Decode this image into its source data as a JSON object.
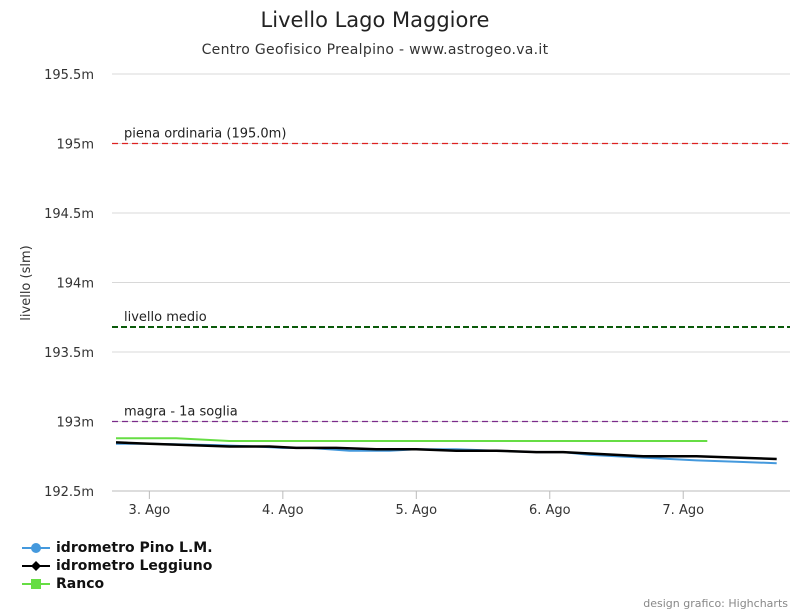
{
  "chart_data": {
    "type": "line",
    "title": "Livello Lago Maggiore",
    "subtitle": "Centro Geofisico Prealpino - www.astrogeo.va.it",
    "ylabel": "livello (slm)",
    "xlabel": "",
    "ylim": [
      192.5,
      195.5
    ],
    "xlim": [
      2.72,
      7.8
    ],
    "y_ticks": [
      {
        "value": 192.5,
        "label": "192.5m"
      },
      {
        "value": 193,
        "label": "193m"
      },
      {
        "value": 193.5,
        "label": "193.5m"
      },
      {
        "value": 194,
        "label": "194m"
      },
      {
        "value": 194.5,
        "label": "194.5m"
      },
      {
        "value": 195,
        "label": "195m"
      },
      {
        "value": 195.5,
        "label": "195.5m"
      }
    ],
    "x_ticks": [
      {
        "value": 3,
        "label": "3. Ago"
      },
      {
        "value": 4,
        "label": "4. Ago"
      },
      {
        "value": 5,
        "label": "5. Ago"
      },
      {
        "value": 6,
        "label": "6. Ago"
      },
      {
        "value": 7,
        "label": "7. Ago"
      }
    ],
    "plot_lines": [
      {
        "value": 195.0,
        "label": "piena ordinaria (195.0m)",
        "color": "#dd2222",
        "style": "dashed"
      },
      {
        "value": 193.68,
        "label": "livello medio",
        "color": "#0a5a0a",
        "style": "dashed-bold"
      },
      {
        "value": 193.0,
        "label": "magra - 1a soglia",
        "color": "#7a2a8a",
        "style": "dashed"
      }
    ],
    "grid": true,
    "legend_position": "bottom-left",
    "series": [
      {
        "name": "idrometro Pino L.M.",
        "color": "#4499dd",
        "marker": "circle",
        "x": [
          2.75,
          3.0,
          3.5,
          3.8,
          4.0,
          4.2,
          4.5,
          4.8,
          5.0,
          5.3,
          5.6,
          5.9,
          6.1,
          6.3,
          6.5,
          6.7,
          6.9,
          7.1,
          7.4,
          7.7
        ],
        "y": [
          192.84,
          192.84,
          192.83,
          192.82,
          192.81,
          192.81,
          192.79,
          192.79,
          192.8,
          192.8,
          192.79,
          192.78,
          192.78,
          192.76,
          192.75,
          192.74,
          192.73,
          192.72,
          192.71,
          192.7
        ]
      },
      {
        "name": "idrometro Leggiuno",
        "color": "#000000",
        "marker": "diamond",
        "x": [
          2.75,
          3.0,
          3.3,
          3.6,
          3.9,
          4.1,
          4.4,
          4.7,
          5.0,
          5.3,
          5.6,
          5.9,
          6.1,
          6.3,
          6.5,
          6.7,
          6.9,
          7.1,
          7.4,
          7.7
        ],
        "y": [
          192.85,
          192.84,
          192.83,
          192.82,
          192.82,
          192.81,
          192.81,
          192.8,
          192.8,
          192.79,
          192.79,
          192.78,
          192.78,
          192.77,
          192.76,
          192.75,
          192.75,
          192.75,
          192.74,
          192.73
        ]
      },
      {
        "name": "Ranco",
        "color": "#66dd44",
        "marker": "square",
        "x": [
          2.75,
          3.0,
          3.2,
          3.4,
          3.6,
          4.0,
          4.5,
          5.0,
          5.5,
          6.0,
          6.5,
          7.0,
          7.18
        ],
        "y": [
          192.88,
          192.88,
          192.88,
          192.87,
          192.86,
          192.86,
          192.86,
          192.86,
          192.86,
          192.86,
          192.86,
          192.86,
          192.86
        ]
      }
    ]
  },
  "credits": "design grafico: Highcharts"
}
